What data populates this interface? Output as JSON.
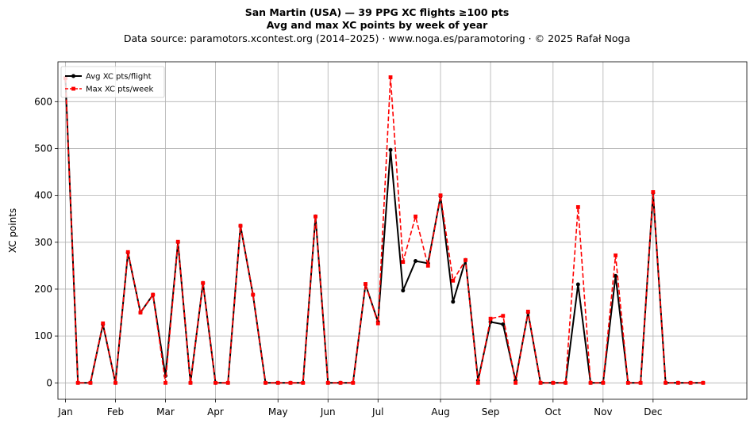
{
  "chart_data": {
    "type": "line",
    "title": "San Martin (USA)  —  39 PPG XC flights ≥100 pts",
    "subtitle": "Avg and max XC points by week of year",
    "source_line": "Data source: paramotors.xcontest.org (2014–2025)  ·  www.noga.es/paramotoring  ·  © 2025 Rafał Noga",
    "xlabel": "",
    "ylabel": "XC points",
    "xlim": [
      -0.6,
      54.5
    ],
    "ylim": [
      -35,
      685
    ],
    "yticks": [
      0,
      100,
      200,
      300,
      400,
      500,
      600
    ],
    "xticks": [
      {
        "label": "Jan",
        "week": 0
      },
      {
        "label": "Feb",
        "week": 4
      },
      {
        "label": "Mar",
        "week": 8
      },
      {
        "label": "Apr",
        "week": 12
      },
      {
        "label": "May",
        "week": 17
      },
      {
        "label": "Jun",
        "week": 21
      },
      {
        "label": "Jul",
        "week": 25
      },
      {
        "label": "Aug",
        "week": 30
      },
      {
        "label": "Sep",
        "week": 34
      },
      {
        "label": "Oct",
        "week": 39
      },
      {
        "label": "Nov",
        "week": 43
      },
      {
        "label": "Dec",
        "week": 47
      }
    ],
    "grid": true,
    "legend_position": "upper-left",
    "x": [
      0,
      1,
      2,
      3,
      4,
      5,
      6,
      7,
      8,
      9,
      10,
      11,
      12,
      13,
      14,
      15,
      16,
      17,
      18,
      19,
      20,
      21,
      22,
      23,
      24,
      25,
      26,
      27,
      28,
      29,
      30,
      31,
      32,
      33,
      34,
      35,
      36,
      37,
      38,
      39,
      40,
      41,
      42,
      43,
      44,
      45,
      46,
      47,
      48,
      49,
      50,
      51
    ],
    "series": [
      {
        "name": "Avg XC pts/flight",
        "color": "#000000",
        "style": "solid-dot",
        "values": [
          650,
          0,
          0,
          125,
          0,
          278,
          150,
          188,
          15,
          300,
          0,
          213,
          0,
          0,
          335,
          188,
          0,
          0,
          0,
          0,
          355,
          0,
          0,
          0,
          210,
          130,
          497,
          197,
          260,
          255,
          398,
          173,
          262,
          5,
          130,
          125,
          5,
          150,
          0,
          0,
          0,
          210,
          0,
          0,
          228,
          0,
          0,
          405,
          0,
          0,
          0,
          0
        ]
      },
      {
        "name": "Max XC pts/week",
        "color": "#ff0000",
        "style": "dashed-square",
        "values": [
          650,
          0,
          0,
          127,
          0,
          279,
          150,
          188,
          0,
          301,
          0,
          213,
          0,
          0,
          335,
          188,
          0,
          0,
          0,
          0,
          355,
          0,
          0,
          0,
          211,
          127,
          652,
          258,
          355,
          250,
          400,
          218,
          262,
          0,
          137,
          143,
          0,
          152,
          0,
          0,
          0,
          375,
          0,
          0,
          272,
          0,
          0,
          407,
          0,
          0,
          0,
          0
        ]
      }
    ]
  }
}
